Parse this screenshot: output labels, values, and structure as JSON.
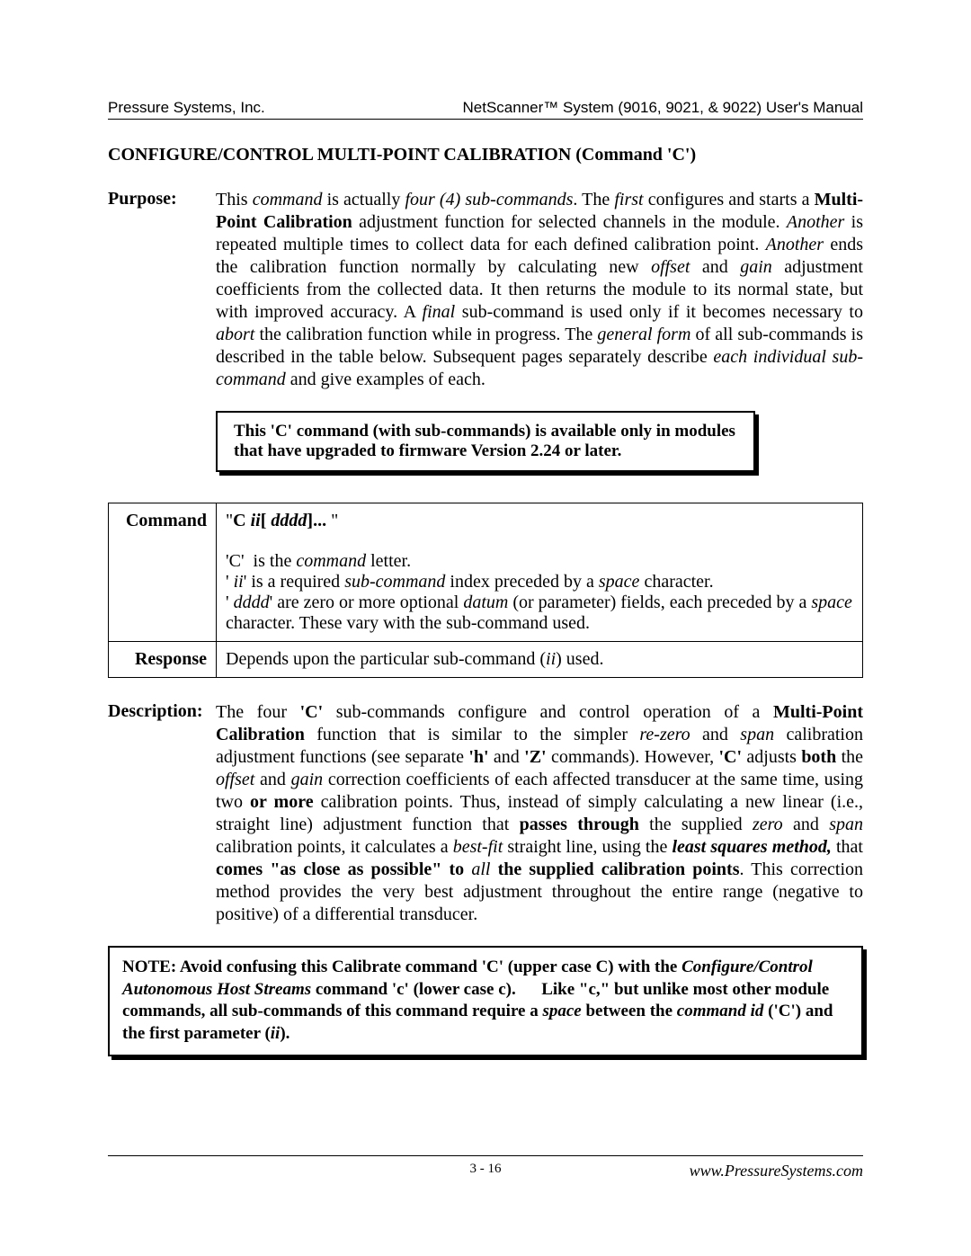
{
  "header": {
    "left": "Pressure Systems, Inc.",
    "right": "NetScanner™ System (9016, 9021, & 9022) User's Manual"
  },
  "title": "CONFIGURE/CONTROL MULTI-POINT CALIBRATION (Command 'C')",
  "purpose": {
    "label": "Purpose:"
  },
  "notebox1": "This 'C' command (with  sub-commands) is available only in modules that have upgraded  to firmware Version 2.24 or later.",
  "table": {
    "r1label": "Command",
    "r2label": "Response",
    "response": "Depends upon the particular sub-command (ii) used."
  },
  "description": {
    "label": "Description:"
  },
  "footer": {
    "page": "3 - 16",
    "url": "www.PressureSystems.com"
  }
}
